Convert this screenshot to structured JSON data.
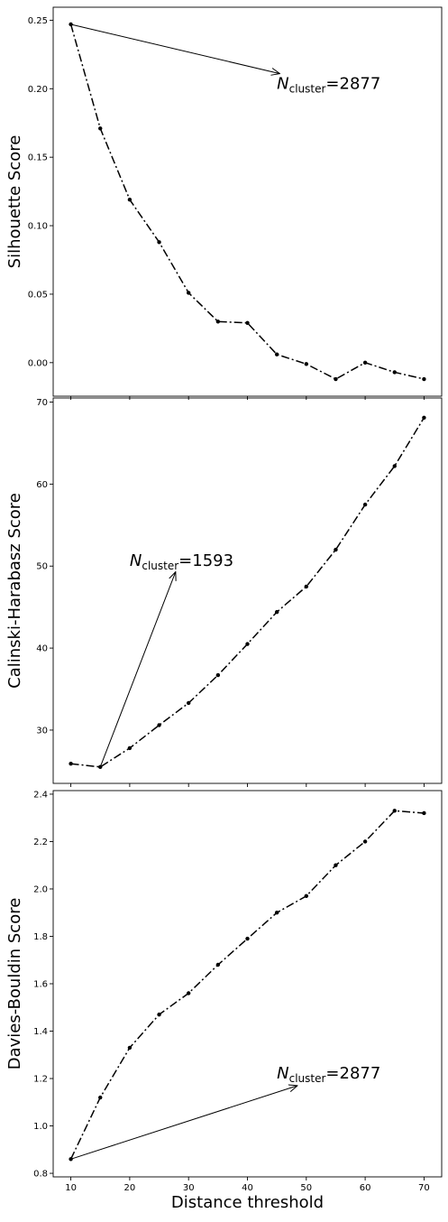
{
  "chart_data": [
    {
      "type": "line",
      "ylabel": "Silhouette Score",
      "xlabel": "",
      "xlim": [
        7.0,
        73.0
      ],
      "ylim": [
        -0.0245,
        0.2595
      ],
      "xticks": [
        10,
        20,
        30,
        40,
        50,
        60,
        70
      ],
      "yticks": [
        0.0,
        0.05,
        0.1,
        0.15,
        0.2,
        0.25
      ],
      "ytick_labels": [
        "0.00",
        "0.05",
        "0.10",
        "0.15",
        "0.20",
        "0.25"
      ],
      "show_xtick_labels": false,
      "grid": false,
      "series": [
        {
          "x": [
            10,
            15,
            20,
            25,
            30,
            35,
            40,
            45,
            50,
            55,
            60,
            65,
            70
          ],
          "values": [
            0.247,
            0.171,
            0.119,
            0.088,
            0.051,
            0.03,
            0.029,
            0.006,
            -0.001,
            -0.012,
            0.0,
            -0.007,
            -0.012
          ],
          "color": "#000000",
          "style": "dash-dot",
          "marker": "dot"
        }
      ],
      "annotation": {
        "text": "=2877",
        "symbol": "N",
        "subscript": "cluster",
        "text_x": 45,
        "text_y": 0.2,
        "arrow_from": [
          10,
          0.247
        ],
        "arrow_to": [
          45.5,
          0.211
        ]
      }
    },
    {
      "type": "line",
      "ylabel": "Calinski-Harabasz Score",
      "xlabel": "",
      "xlim": [
        7.0,
        73.0
      ],
      "ylim": [
        23.5,
        70.5
      ],
      "xticks": [
        10,
        20,
        30,
        40,
        50,
        60,
        70
      ],
      "yticks": [
        30,
        40,
        50,
        60,
        70
      ],
      "ytick_labels": [
        "30",
        "40",
        "50",
        "60",
        "70"
      ],
      "show_xtick_labels": false,
      "grid": false,
      "series": [
        {
          "x": [
            10,
            15,
            20,
            25,
            30,
            35,
            40,
            45,
            50,
            55,
            60,
            65,
            70
          ],
          "values": [
            25.9,
            25.5,
            27.8,
            30.6,
            33.3,
            36.7,
            40.5,
            44.4,
            47.5,
            52.0,
            57.5,
            62.2,
            68.1
          ],
          "color": "#000000",
          "style": "dash-dot",
          "marker": "dot"
        }
      ],
      "annotation": {
        "text": "=1593",
        "symbol": "N",
        "subscript": "cluster",
        "text_x": 20,
        "text_y": 50,
        "arrow_from": [
          15,
          25.5
        ],
        "arrow_to": [
          27.8,
          49.3
        ]
      }
    },
    {
      "type": "line",
      "ylabel": "Davies-Bouldin Score",
      "xlabel": "Distance threshold",
      "xlim": [
        7.0,
        73.0
      ],
      "ylim": [
        0.785,
        2.415
      ],
      "xticks": [
        10,
        20,
        30,
        40,
        50,
        60,
        70
      ],
      "yticks": [
        0.8,
        1.0,
        1.2,
        1.4,
        1.6,
        1.8,
        2.0,
        2.2,
        2.4
      ],
      "ytick_labels": [
        "0.8",
        "1.0",
        "1.2",
        "1.4",
        "1.6",
        "1.8",
        "2.0",
        "2.2",
        "2.4"
      ],
      "show_xtick_labels": true,
      "xtick_labels": [
        "10",
        "20",
        "30",
        "40",
        "50",
        "60",
        "70"
      ],
      "grid": false,
      "series": [
        {
          "x": [
            10,
            15,
            20,
            25,
            30,
            35,
            40,
            45,
            50,
            55,
            60,
            65,
            70
          ],
          "values": [
            0.86,
            1.12,
            1.33,
            1.47,
            1.56,
            1.68,
            1.79,
            1.9,
            1.97,
            2.1,
            2.2,
            2.33,
            2.32
          ],
          "color": "#000000",
          "style": "dash-dot",
          "marker": "dot"
        }
      ],
      "annotation": {
        "text": "=2877",
        "symbol": "N",
        "subscript": "cluster",
        "text_x": 45,
        "text_y": 1.2,
        "arrow_from": [
          10,
          0.86
        ],
        "arrow_to": [
          48.5,
          1.17
        ]
      }
    }
  ]
}
